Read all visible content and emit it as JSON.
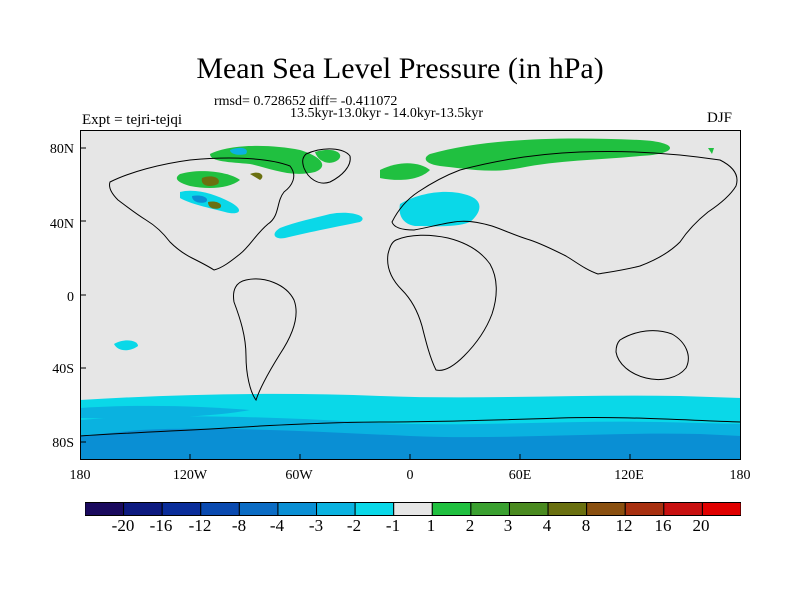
{
  "title": "Mean Sea Level Pressure (in hPa)",
  "stats_line": "rmsd= 0.728652 diff= -0.411072",
  "period_line": "13.5kyr-13.0kyr - 14.0kyr-13.5kyr",
  "experiment": "Expt = tejri-tejqi",
  "season": "DJF",
  "lat_labels": [
    "80N",
    "40N",
    "0",
    "40S",
    "80S"
  ],
  "lon_labels": [
    "180",
    "120W",
    "60W",
    "0",
    "60E",
    "120E",
    "180"
  ],
  "colorbar": {
    "labels": [
      "-20",
      "-16",
      "-12",
      "-8",
      "-4",
      "-3",
      "-2",
      "-1",
      "1",
      "2",
      "3",
      "4",
      "8",
      "12",
      "16",
      "20"
    ],
    "colors": [
      "#1a0a5e",
      "#0d1a80",
      "#0a2d9a",
      "#0a4ab0",
      "#0b6cc4",
      "#0a8fd4",
      "#0ab2e0",
      "#0ad8e8",
      "#e6e6e6",
      "#20c040",
      "#3aa030",
      "#4a8a20",
      "#6a7010",
      "#8a5010",
      "#a83010",
      "#c81010",
      "#e00000"
    ]
  },
  "palette": {
    "land": "#e6e6e6",
    "neg1": "#0ad8e8",
    "neg2": "#0ab2e0",
    "neg3": "#0a8fd4",
    "neg4": "#0b6cc4",
    "pos1": "#20c040",
    "pos2": "#3aa030",
    "pos3": "#6a7010"
  }
}
